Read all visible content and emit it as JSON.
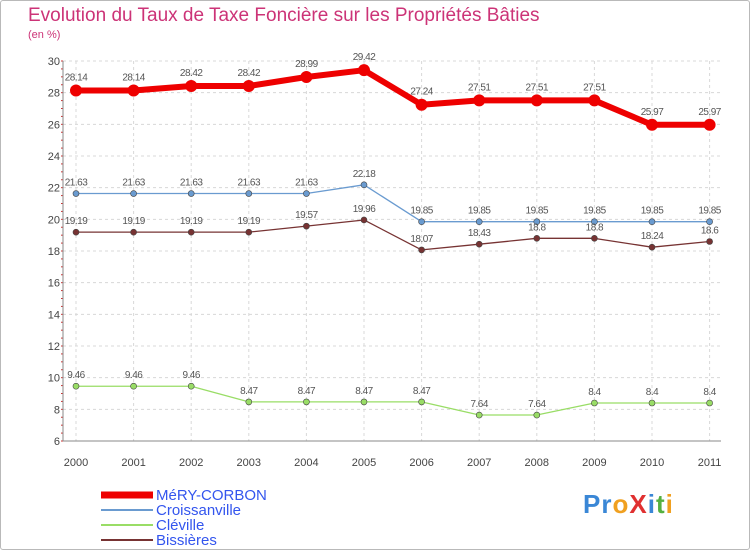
{
  "chart_data": {
    "type": "line",
    "title": "Evolution du Taux de Taxe Foncière sur les Propriétés Bâties",
    "subtitle": "(en %)",
    "x": [
      "2000",
      "2001",
      "2002",
      "2003",
      "2004",
      "2005",
      "2006",
      "2007",
      "2008",
      "2009",
      "2010",
      "2011"
    ],
    "ylim": [
      6,
      30
    ],
    "yticks": [
      6,
      8,
      10,
      12,
      14,
      16,
      18,
      20,
      22,
      24,
      26,
      28,
      30
    ],
    "grid": true,
    "legend_position": "bottom-left",
    "series": [
      {
        "name": "MéRY-CORBON",
        "color": "#ee0000",
        "values": [
          28.14,
          28.14,
          28.42,
          28.42,
          28.99,
          29.42,
          27.24,
          27.51,
          27.51,
          27.51,
          25.97,
          25.97
        ]
      },
      {
        "name": "Croissanville",
        "color": "#6a9bd0",
        "values": [
          21.63,
          21.63,
          21.63,
          21.63,
          21.63,
          22.18,
          19.85,
          19.85,
          19.85,
          19.85,
          19.85,
          19.85
        ]
      },
      {
        "name": "Cléville",
        "color": "#99dd66",
        "values": [
          9.46,
          9.46,
          9.46,
          8.47,
          8.47,
          8.47,
          8.47,
          7.64,
          7.64,
          8.4,
          8.4,
          8.4
        ]
      },
      {
        "name": "Bissières",
        "color": "#773333",
        "values": [
          19.19,
          19.19,
          19.19,
          19.19,
          19.57,
          19.96,
          18.07,
          18.43,
          18.8,
          18.8,
          18.24,
          18.6
        ]
      }
    ]
  },
  "logo": {
    "text": "ProXiti",
    "letters": [
      {
        "char": "P",
        "color": "#3a87d6"
      },
      {
        "char": "r",
        "color": "#3a87d6"
      },
      {
        "char": "o",
        "color": "#f0a020"
      },
      {
        "char": "X",
        "color": "#e03030"
      },
      {
        "char": "i",
        "color": "#3a87d6"
      },
      {
        "char": "t",
        "color": "#55b040"
      },
      {
        "char": "i",
        "color": "#f0a020"
      }
    ]
  }
}
